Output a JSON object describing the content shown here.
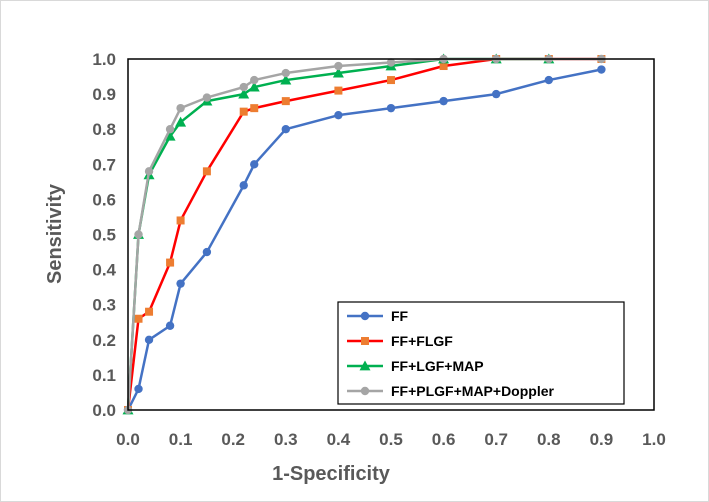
{
  "chart_data": {
    "type": "line",
    "title": "",
    "xlabel": "1-Specificity",
    "ylabel": "Sensitivity",
    "xlim": [
      0,
      1.0
    ],
    "ylim": [
      0,
      1.0
    ],
    "x_ticks": [
      "0.0",
      "0.1",
      "0.2",
      "0.3",
      "0.4",
      "0.5",
      "0.6",
      "0.7",
      "0.8",
      "0.9",
      "1.0"
    ],
    "y_ticks": [
      "0.0",
      "0.1",
      "0.2",
      "0.3",
      "0.4",
      "0.5",
      "0.6",
      "0.7",
      "0.8",
      "0.9",
      "1.0"
    ],
    "grid": false,
    "legend_position": "bottom-right",
    "series": [
      {
        "name": "FF",
        "color": "#4472C4",
        "marker": "circle",
        "x": [
          0,
          0.02,
          0.04,
          0.08,
          0.1,
          0.15,
          0.22,
          0.24,
          0.3,
          0.4,
          0.5,
          0.6,
          0.7,
          0.8,
          0.9
        ],
        "y": [
          0,
          0.06,
          0.2,
          0.24,
          0.36,
          0.45,
          0.64,
          0.7,
          0.8,
          0.84,
          0.86,
          0.88,
          0.9,
          0.94,
          0.97
        ]
      },
      {
        "name": "FF+FLGF",
        "color": "#ED7D31",
        "line_color": "#FF0000",
        "marker": "square",
        "x": [
          0,
          0.02,
          0.04,
          0.08,
          0.1,
          0.15,
          0.22,
          0.24,
          0.3,
          0.4,
          0.5,
          0.6,
          0.7,
          0.8,
          0.9
        ],
        "y": [
          0,
          0.26,
          0.28,
          0.42,
          0.54,
          0.68,
          0.85,
          0.86,
          0.88,
          0.91,
          0.94,
          0.98,
          1.0,
          1.0,
          1.0
        ]
      },
      {
        "name": "FF+LGF+MAP",
        "color": "#00B050",
        "marker": "triangle",
        "x": [
          0,
          0.02,
          0.04,
          0.08,
          0.1,
          0.15,
          0.22,
          0.24,
          0.3,
          0.4,
          0.5,
          0.6,
          0.7,
          0.8
        ],
        "y": [
          0,
          0.5,
          0.67,
          0.78,
          0.82,
          0.88,
          0.9,
          0.92,
          0.94,
          0.96,
          0.98,
          1.0,
          1.0,
          1.0
        ]
      },
      {
        "name": "FF+PLGF+MAP+Doppler",
        "color": "#A5A5A5",
        "marker": "circle",
        "x": [
          0,
          0.02,
          0.04,
          0.08,
          0.1,
          0.15,
          0.22,
          0.24,
          0.3,
          0.4,
          0.5,
          0.6,
          0.7,
          0.8,
          0.9
        ],
        "y": [
          0,
          0.5,
          0.68,
          0.8,
          0.86,
          0.89,
          0.92,
          0.94,
          0.96,
          0.98,
          0.99,
          1.0,
          1.0,
          1.0,
          1.0
        ]
      }
    ]
  }
}
